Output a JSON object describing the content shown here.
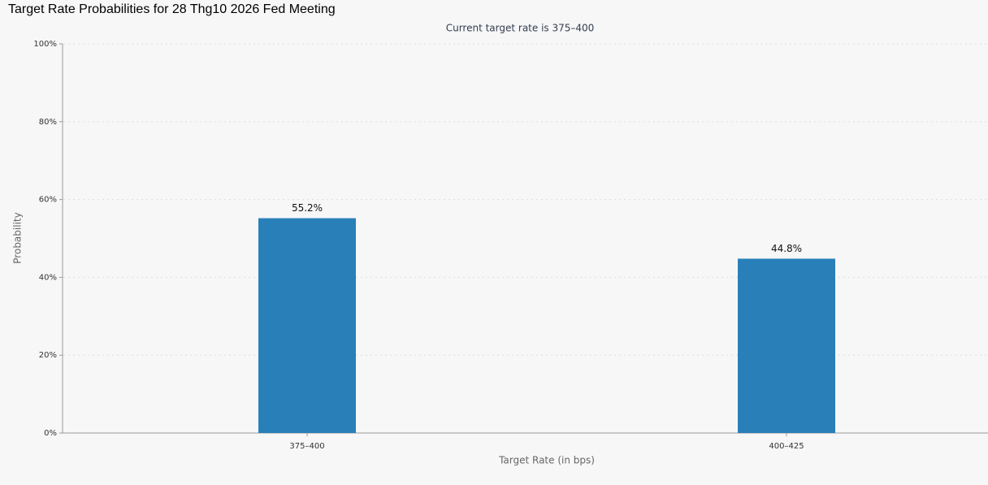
{
  "chart_data": {
    "type": "bar",
    "title": "Target Rate Probabilities for 28 Thg10 2026 Fed Meeting",
    "subtitle": "Current target rate is 375–400",
    "x_label": "Target Rate (in bps)",
    "y_label": "Probability",
    "categories": [
      "375–400",
      "400–425"
    ],
    "values": [
      55.2,
      44.8
    ],
    "value_labels": [
      "55.2%",
      "44.8%"
    ],
    "color": "#2980b9",
    "ylim": [
      0,
      100
    ],
    "yticks": [
      {
        "value": 0,
        "label": "0%"
      },
      {
        "value": 20,
        "label": "20%"
      },
      {
        "value": 40,
        "label": "40%"
      },
      {
        "value": 60,
        "label": "60%"
      },
      {
        "value": 80,
        "label": "80%"
      },
      {
        "value": 100,
        "label": "100%"
      }
    ],
    "grid": true
  }
}
